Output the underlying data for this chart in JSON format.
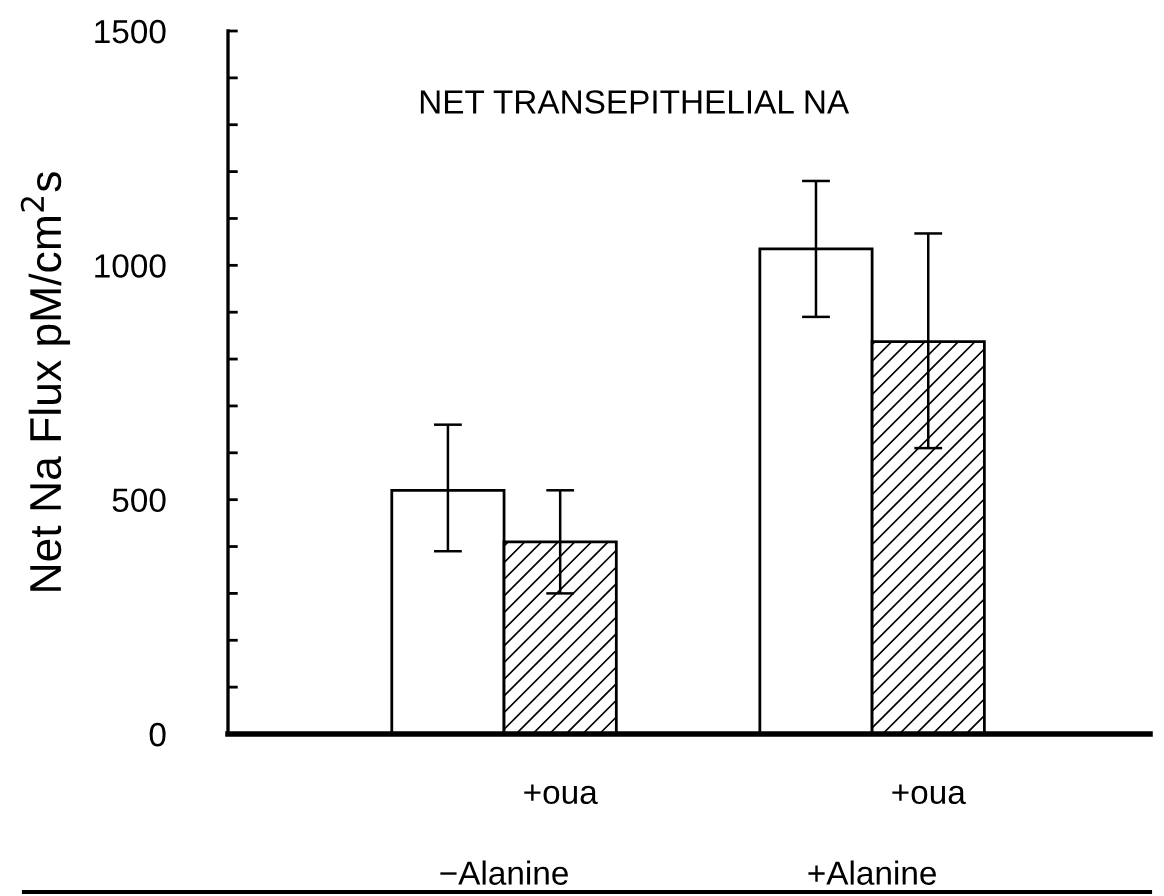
{
  "chart_data": {
    "type": "bar",
    "title": "NET TRANSEPITHELIAL NA",
    "ylabel": "Net Na Flux pM/cm$^{2}$s",
    "categories": [
      "−Alanine",
      "+Alanine"
    ],
    "series": [
      {
        "color": "#ffffff",
        "values": [
          520,
          1035
        ],
        "errors": [
          [
            390,
            660
          ],
          [
            890,
            1180
          ]
        ]
      },
      {
        "name": "+oua",
        "color": "#000000",
        "values": [
          410,
          837
        ],
        "errors": [
          [
            300,
            520
          ],
          [
            610,
            1068
          ]
        ]
      }
    ],
    "ylim": [
      0,
      1500
    ],
    "yticks": [
      0,
      {
        "value": 100,
        "label": null
      },
      {
        "value": 200,
        "label": null
      },
      {
        "value": 300,
        "label": null
      },
      {
        "value": 400,
        "label": null
      },
      500,
      {
        "value": 600,
        "label": null
      },
      {
        "value": 700,
        "label": null
      },
      {
        "value": 800,
        "label": null
      },
      {
        "value": 900,
        "label": null
      },
      1000,
      {
        "value": 1100,
        "label": null
      },
      {
        "value": 1200,
        "label": null
      },
      {
        "value": 1300,
        "label": null
      },
      {
        "value": 1400,
        "label": null
      },
      1500
    ],
    "grid": false,
    "legend": false
  }
}
